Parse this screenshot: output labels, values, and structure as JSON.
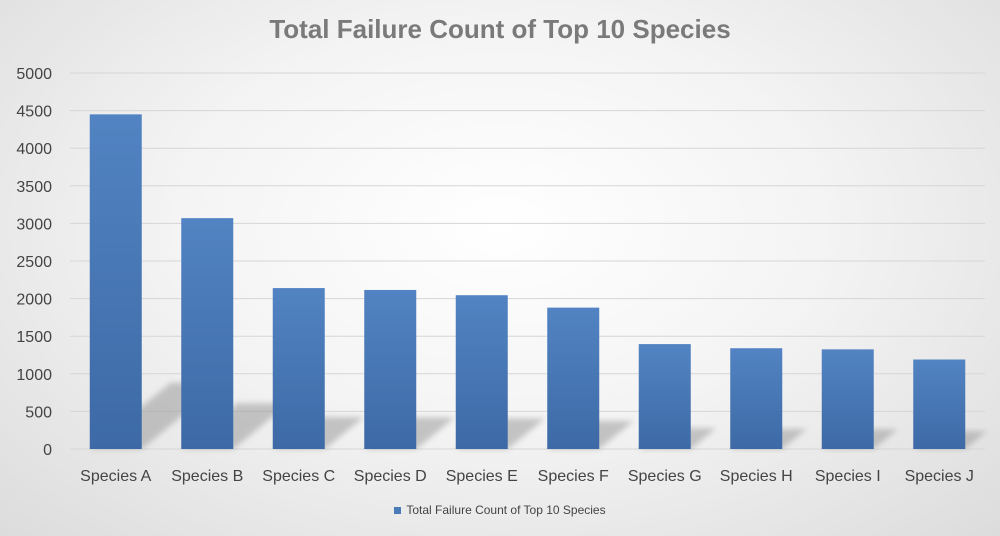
{
  "chart_data": {
    "type": "bar",
    "title": "Total Failure Count of Top 10 Species",
    "categories": [
      "Species A",
      "Species B",
      "Species C",
      "Species D",
      "Species E",
      "Species F",
      "Species G",
      "Species H",
      "Species I",
      "Species J"
    ],
    "series": [
      {
        "name": "Total Failure Count of Top 10 Species",
        "values": [
          4450,
          3070,
          2140,
          2115,
          2045,
          1880,
          1395,
          1340,
          1325,
          1190
        ],
        "color": "#4a7ab8"
      }
    ],
    "ylim": [
      0,
      5000
    ],
    "yticks": [
      0,
      500,
      1000,
      1500,
      2000,
      2500,
      3000,
      3500,
      4000,
      4500,
      5000
    ],
    "grid": true,
    "legend_position": "bottom"
  }
}
